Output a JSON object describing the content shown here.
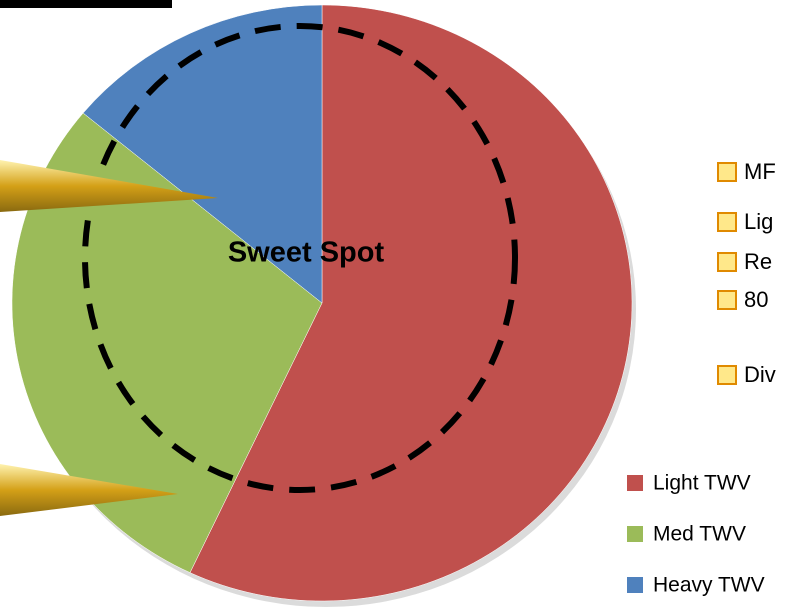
{
  "chart_data": {
    "type": "pie",
    "categories": [
      "Light TWV",
      "Med TWV",
      "Heavy TWV"
    ],
    "values": [
      57,
      29,
      14
    ],
    "colors": [
      "#c0504d",
      "#9bbb59",
      "#4f81bd"
    ],
    "annotation": "Sweet Spot",
    "notes": [
      "MF",
      "Lig",
      "Re",
      "80",
      "Div"
    ]
  }
}
